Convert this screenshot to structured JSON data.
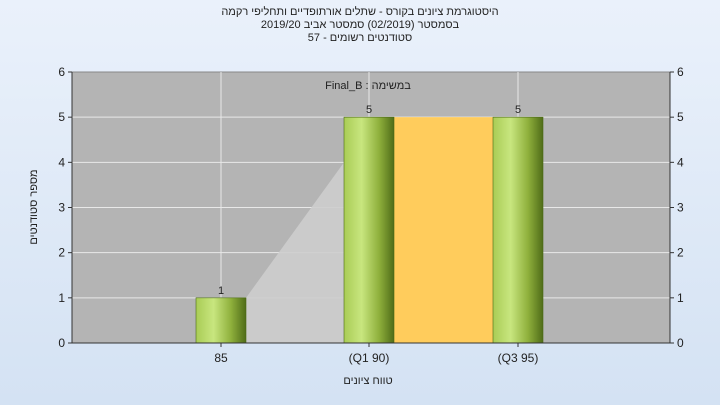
{
  "header": {
    "line1": "היסטוגרמת ציונים בקורס - שתלים אורתופדיים ותחליפי רקמה",
    "line2": "בסמסטר  (02/2019)  סמסטר אביב 2019/20",
    "line3": "סטודנטים רשומים - 57"
  },
  "chart_data": {
    "type": "bar",
    "annotation": "במשימה : Final_B",
    "xlabel": "טווח ציונים",
    "ylabel": "מספר סטודנטים",
    "categories": [
      "85",
      "(Q1 90)",
      "(Q3 95)"
    ],
    "values": [
      1,
      5,
      5
    ],
    "data_labels": [
      "1",
      "5",
      "5"
    ],
    "ylim": [
      0,
      6
    ],
    "yticks": [
      0,
      1,
      2,
      3,
      4,
      5,
      6
    ],
    "grid": true,
    "quartile_band": {
      "from_category": "(Q1 90)",
      "to_category": "(Q3 95)",
      "color": "#ffcc5c"
    },
    "colors": {
      "plot_background": "#b4b4b4",
      "bar_light": "#c4e27a",
      "bar_dark": "#5a7a1f",
      "area_fill": "#cdcdcd"
    }
  }
}
